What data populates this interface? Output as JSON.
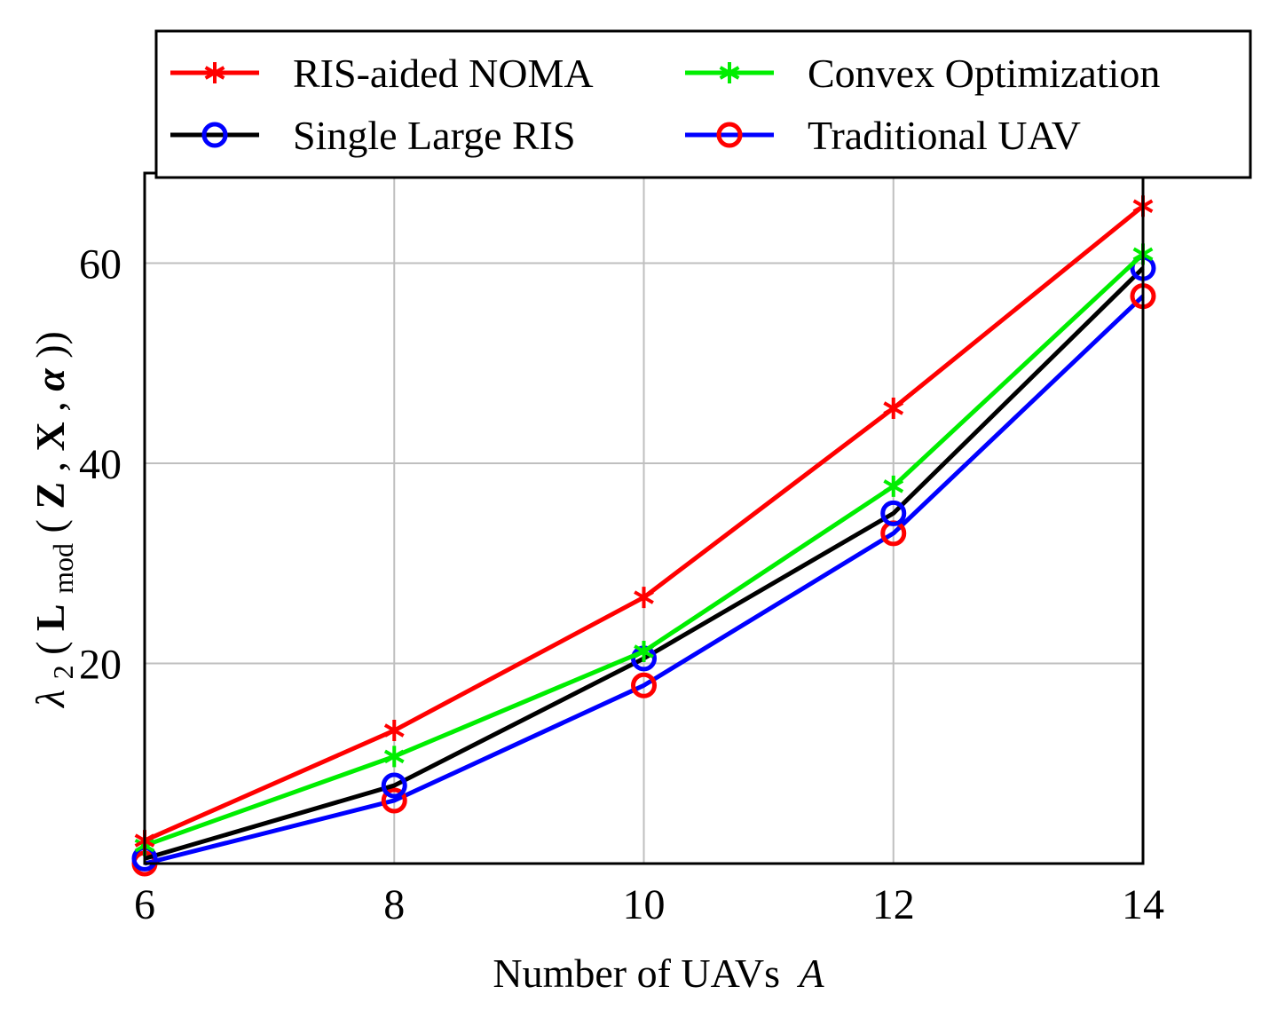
{
  "chart_data": {
    "type": "line",
    "title": "",
    "xlabel": "Number of UAVs",
    "xlabel_var": "A",
    "ylabel": {
      "lambda": "λ",
      "lambda_sub": "2",
      "open": "(",
      "L": "L",
      "L_sub": "mod",
      "args_open": "(",
      "Z": "Z",
      "sep1": ", ",
      "X": "X",
      "sep2": ", ",
      "alpha": "α",
      "close": "))"
    },
    "x": [
      6,
      8,
      10,
      12,
      14
    ],
    "xlim": [
      6,
      14
    ],
    "ylim": [
      0,
      69
    ],
    "xticks": [
      6,
      8,
      10,
      12,
      14
    ],
    "yticks": [
      20,
      40,
      60
    ],
    "grid": true,
    "legend_position": "top, outside, 2 columns",
    "series": [
      {
        "name": "RIS-aided NOMA",
        "line_color": "#ff0000",
        "marker": "star",
        "marker_color": "#ff0000",
        "values": [
          2.3,
          13.3,
          26.6,
          45.5,
          65.7
        ]
      },
      {
        "name": "Single Large RIS",
        "line_color": "#000000",
        "marker": "circle",
        "marker_color": "#0000ff",
        "values": [
          0.5,
          7.8,
          20.5,
          35.0,
          59.5
        ]
      },
      {
        "name": "Convex Optimization",
        "line_color": "#00ee00",
        "marker": "star",
        "marker_color": "#00ee00",
        "values": [
          1.8,
          10.7,
          21.2,
          37.7,
          60.9
        ]
      },
      {
        "name": "Traditional UAV",
        "line_color": "#0000ff",
        "marker": "circle",
        "marker_color": "#ff0000",
        "values": [
          0.0,
          6.3,
          17.8,
          33.0,
          56.7
        ]
      }
    ]
  }
}
